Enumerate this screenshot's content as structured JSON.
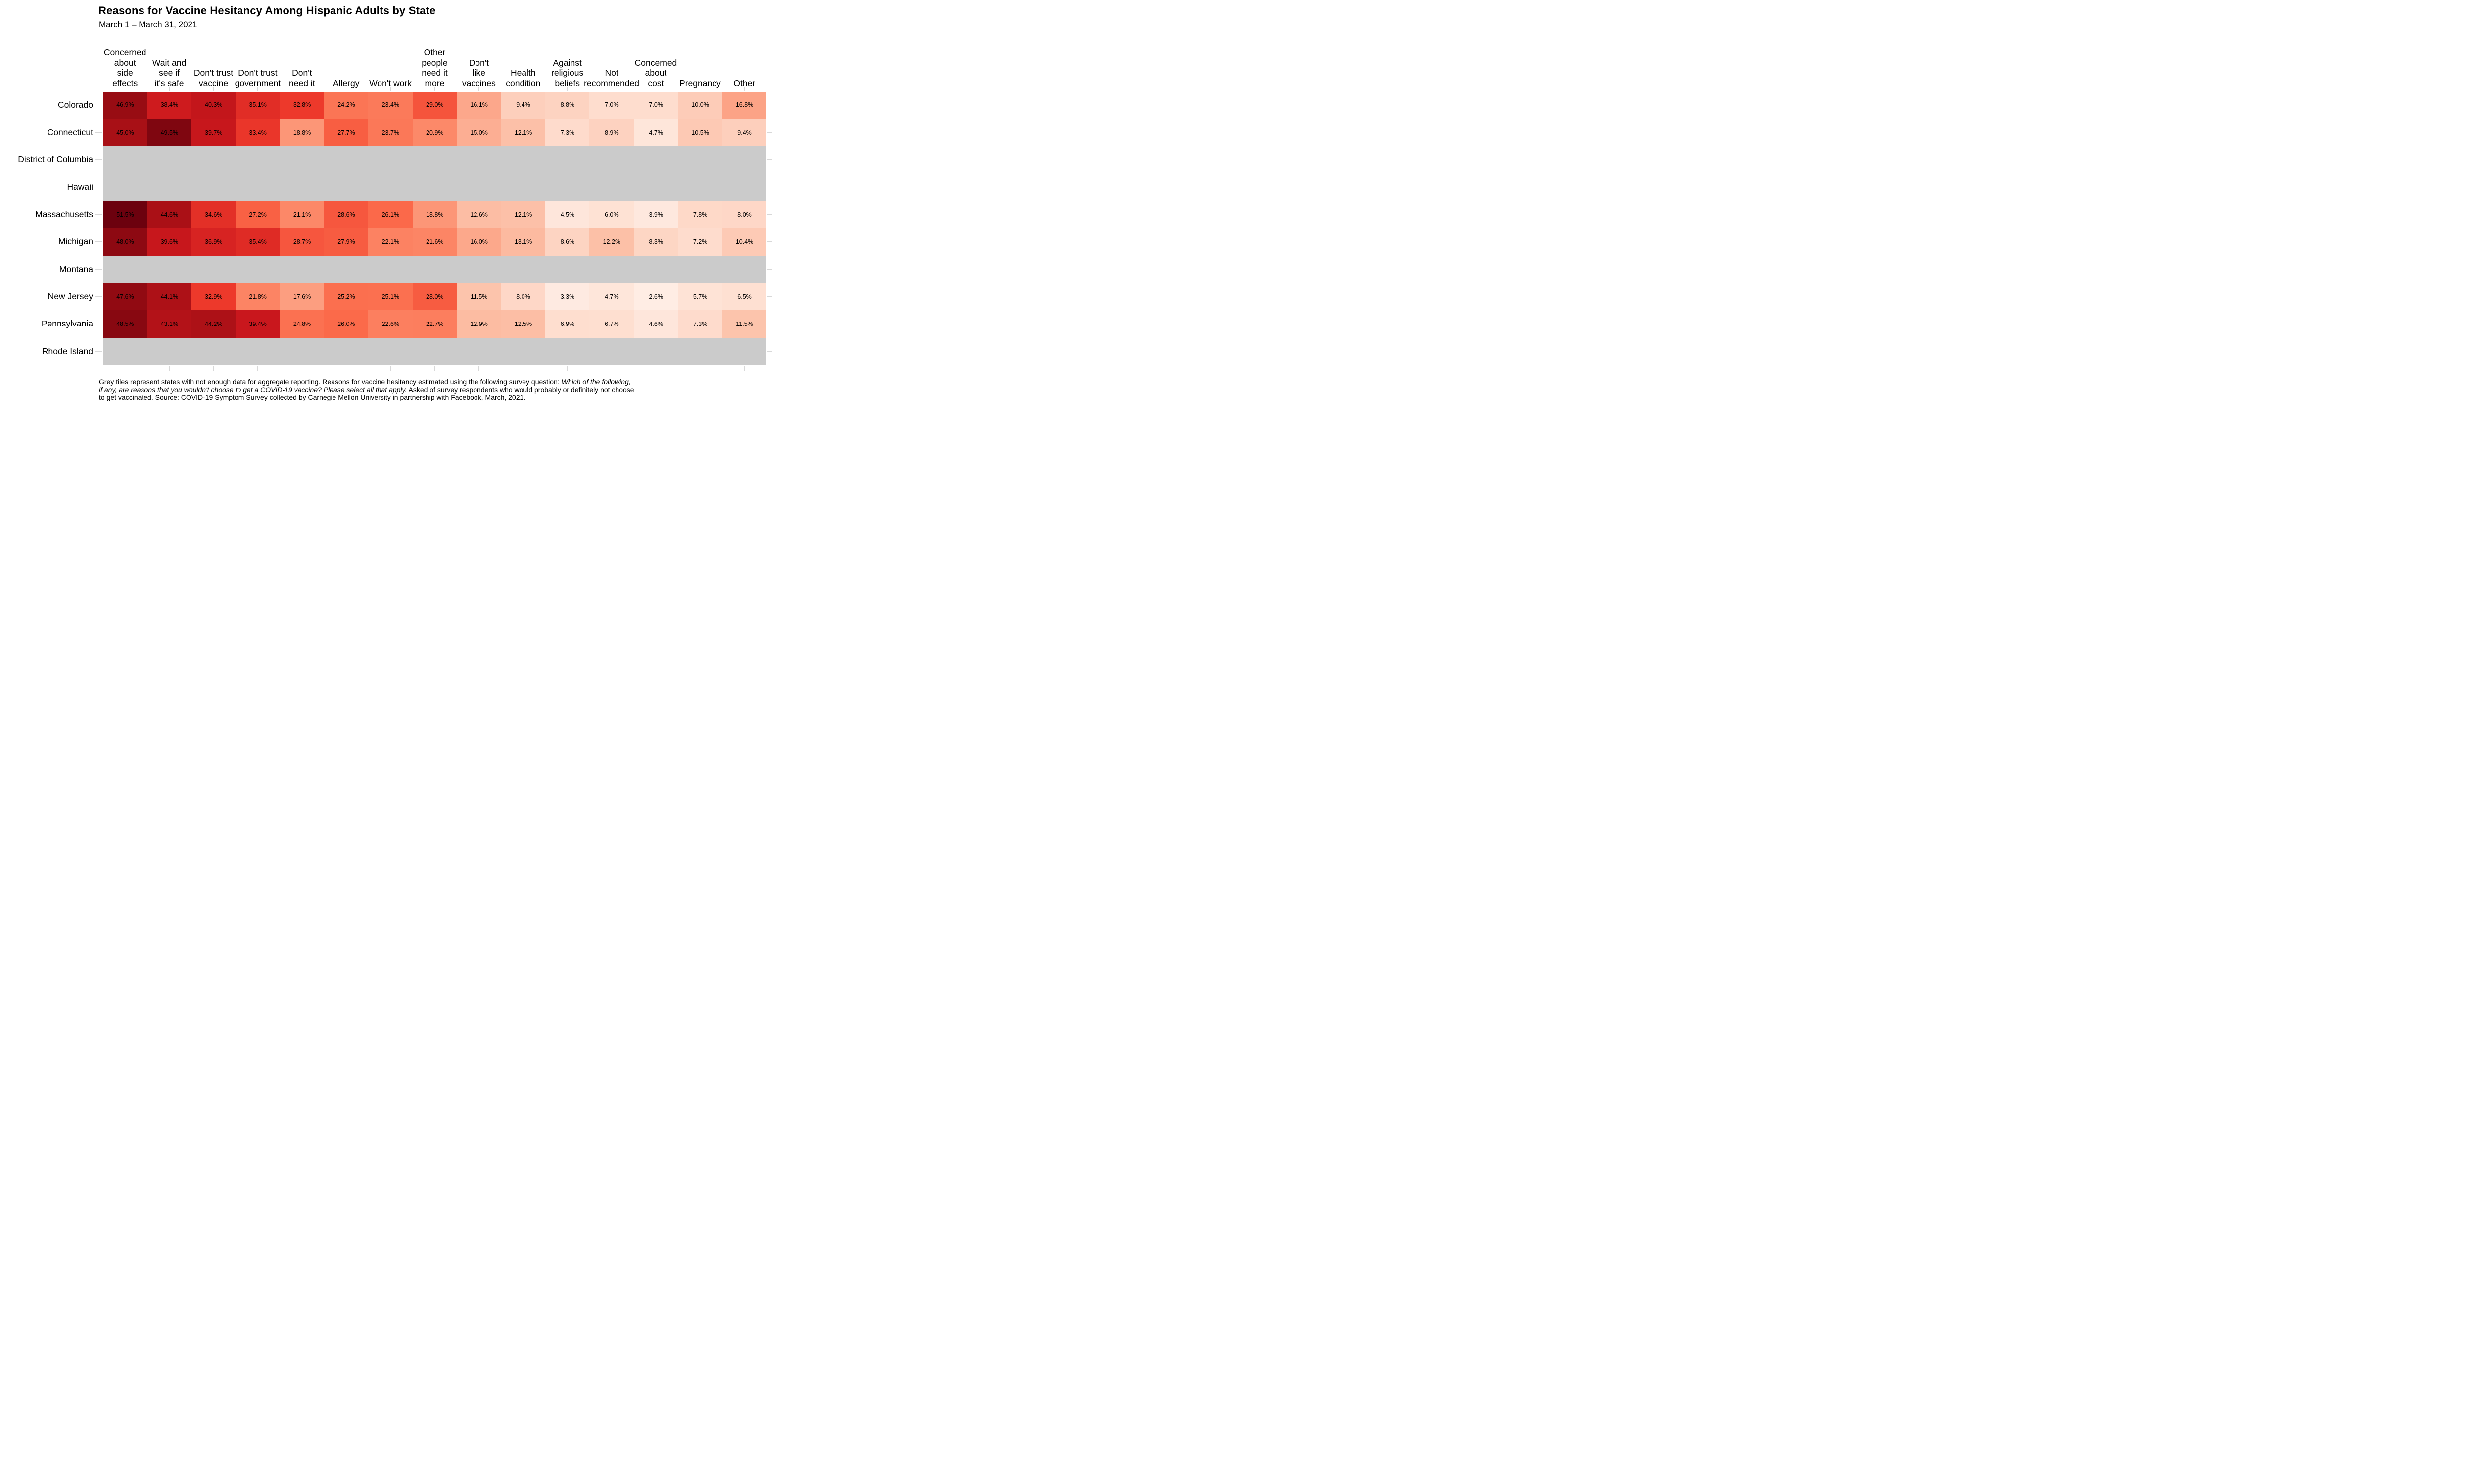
{
  "header": {
    "title": "Reasons for Vaccine Hesitancy Among Hispanic Adults by State",
    "subtitle": "March 1 – March 31, 2021"
  },
  "chart_data": {
    "type": "heatmap",
    "title": "Reasons for Vaccine Hesitancy Among Hispanic Adults by State",
    "subtitle": "March 1 – March 31, 2021",
    "x_categories": [
      "Concerned about side effects",
      "Wait and see if it's safe",
      "Don't trust vaccine",
      "Don't trust government",
      "Don't need it",
      "Allergy",
      "Won't work",
      "Other people need it more",
      "Don't like vaccines",
      "Health condition",
      "Against religious beliefs",
      "Not recommended",
      "Concerned about cost",
      "Pregnancy",
      "Other"
    ],
    "x_category_lines": [
      [
        "Concerned",
        "about",
        "side",
        "effects"
      ],
      [
        "Wait and",
        "see if",
        "it's safe"
      ],
      [
        "Don't trust",
        "vaccine"
      ],
      [
        "Don't trust",
        "government"
      ],
      [
        "Don't",
        "need it"
      ],
      [
        "Allergy"
      ],
      [
        "Won't work"
      ],
      [
        "Other people",
        "need it",
        "more"
      ],
      [
        "Don't",
        "like",
        "vaccines"
      ],
      [
        "Health",
        "condition"
      ],
      [
        "Against",
        "religious",
        "beliefs"
      ],
      [
        "Not",
        "recommended"
      ],
      [
        "Concerned",
        "about",
        "cost"
      ],
      [
        "Pregnancy"
      ],
      [
        "Other"
      ]
    ],
    "y_categories": [
      "Colorado",
      "Connecticut",
      "District of Columbia",
      "Hawaii",
      "Massachusetts",
      "Michigan",
      "Montana",
      "New Jersey",
      "Pennsylvania",
      "Rhode Island"
    ],
    "rows": [
      {
        "state": "Colorado",
        "values": [
          46.9,
          38.4,
          40.3,
          35.1,
          32.8,
          24.2,
          23.4,
          29.0,
          16.1,
          9.4,
          8.8,
          7.0,
          7.0,
          10.0,
          16.8
        ]
      },
      {
        "state": "Connecticut",
        "values": [
          45.0,
          49.5,
          39.7,
          33.4,
          18.8,
          27.7,
          23.7,
          20.9,
          15.0,
          12.1,
          7.3,
          8.9,
          4.7,
          10.5,
          9.4
        ]
      },
      {
        "state": "District of Columbia",
        "values": null
      },
      {
        "state": "Hawaii",
        "values": null
      },
      {
        "state": "Massachusetts",
        "values": [
          51.5,
          44.6,
          34.6,
          27.2,
          21.1,
          28.6,
          26.1,
          18.8,
          12.6,
          12.1,
          4.5,
          6.0,
          3.9,
          7.8,
          8.0
        ]
      },
      {
        "state": "Michigan",
        "values": [
          48.0,
          39.6,
          36.9,
          35.4,
          28.7,
          27.9,
          22.1,
          21.6,
          16.0,
          13.1,
          8.6,
          12.2,
          8.3,
          7.2,
          10.4
        ]
      },
      {
        "state": "Montana",
        "values": null
      },
      {
        "state": "New Jersey",
        "values": [
          47.6,
          44.1,
          32.9,
          21.8,
          17.6,
          25.2,
          25.1,
          28.0,
          11.5,
          8.0,
          3.3,
          4.7,
          2.6,
          5.7,
          6.5
        ]
      },
      {
        "state": "Pennsylvania",
        "values": [
          48.5,
          43.1,
          44.2,
          39.4,
          24.8,
          26.0,
          22.6,
          22.7,
          12.9,
          12.5,
          6.9,
          6.7,
          4.6,
          7.3,
          11.5
        ]
      },
      {
        "state": "Rhode Island",
        "values": null
      }
    ],
    "missing_states": [
      "District of Columbia",
      "Hawaii",
      "Montana",
      "Rhode Island"
    ],
    "value_suffix": "%",
    "legend": "none",
    "grid": "off",
    "color_scale": {
      "palette": "Reds",
      "domain": [
        0,
        52
      ],
      "stops": [
        {
          "pos": 0,
          "color": "#fff5f0"
        },
        {
          "pos": 0.125,
          "color": "#fee0d2"
        },
        {
          "pos": 0.25,
          "color": "#fcbba1"
        },
        {
          "pos": 0.375,
          "color": "#fc9272"
        },
        {
          "pos": 0.5,
          "color": "#fb6a4a"
        },
        {
          "pos": 0.625,
          "color": "#ef3b2c"
        },
        {
          "pos": 0.75,
          "color": "#cb181d"
        },
        {
          "pos": 0.875,
          "color": "#a50f15"
        },
        {
          "pos": 1,
          "color": "#67000d"
        }
      ]
    },
    "missing_color": "#cbcbcb",
    "axis_tick_color": "#d8d8d8",
    "text_color": "#000000"
  },
  "footer": {
    "lines": [
      {
        "segments": [
          {
            "text": "Grey tiles represent states with not enough data for aggregate reporting. Reasons for vaccine hesitancy estimated using the following survey question: ",
            "italic": false
          },
          {
            "text": "Which of the following,",
            "italic": true
          }
        ]
      },
      {
        "segments": [
          {
            "text": "if any, are reasons that you wouldn't choose to get a COVID-19 vaccine? Please select all that apply.",
            "italic": true
          },
          {
            "text": " Asked of survey respondents who would probably or definitely not choose",
            "italic": false
          }
        ]
      },
      {
        "segments": [
          {
            "text": "to get vaccinated. Source: COVID-19 Symptom Survey collected by Carnegie Mellon University in partnership with Facebook, March, 2021.",
            "italic": false
          }
        ]
      }
    ]
  }
}
